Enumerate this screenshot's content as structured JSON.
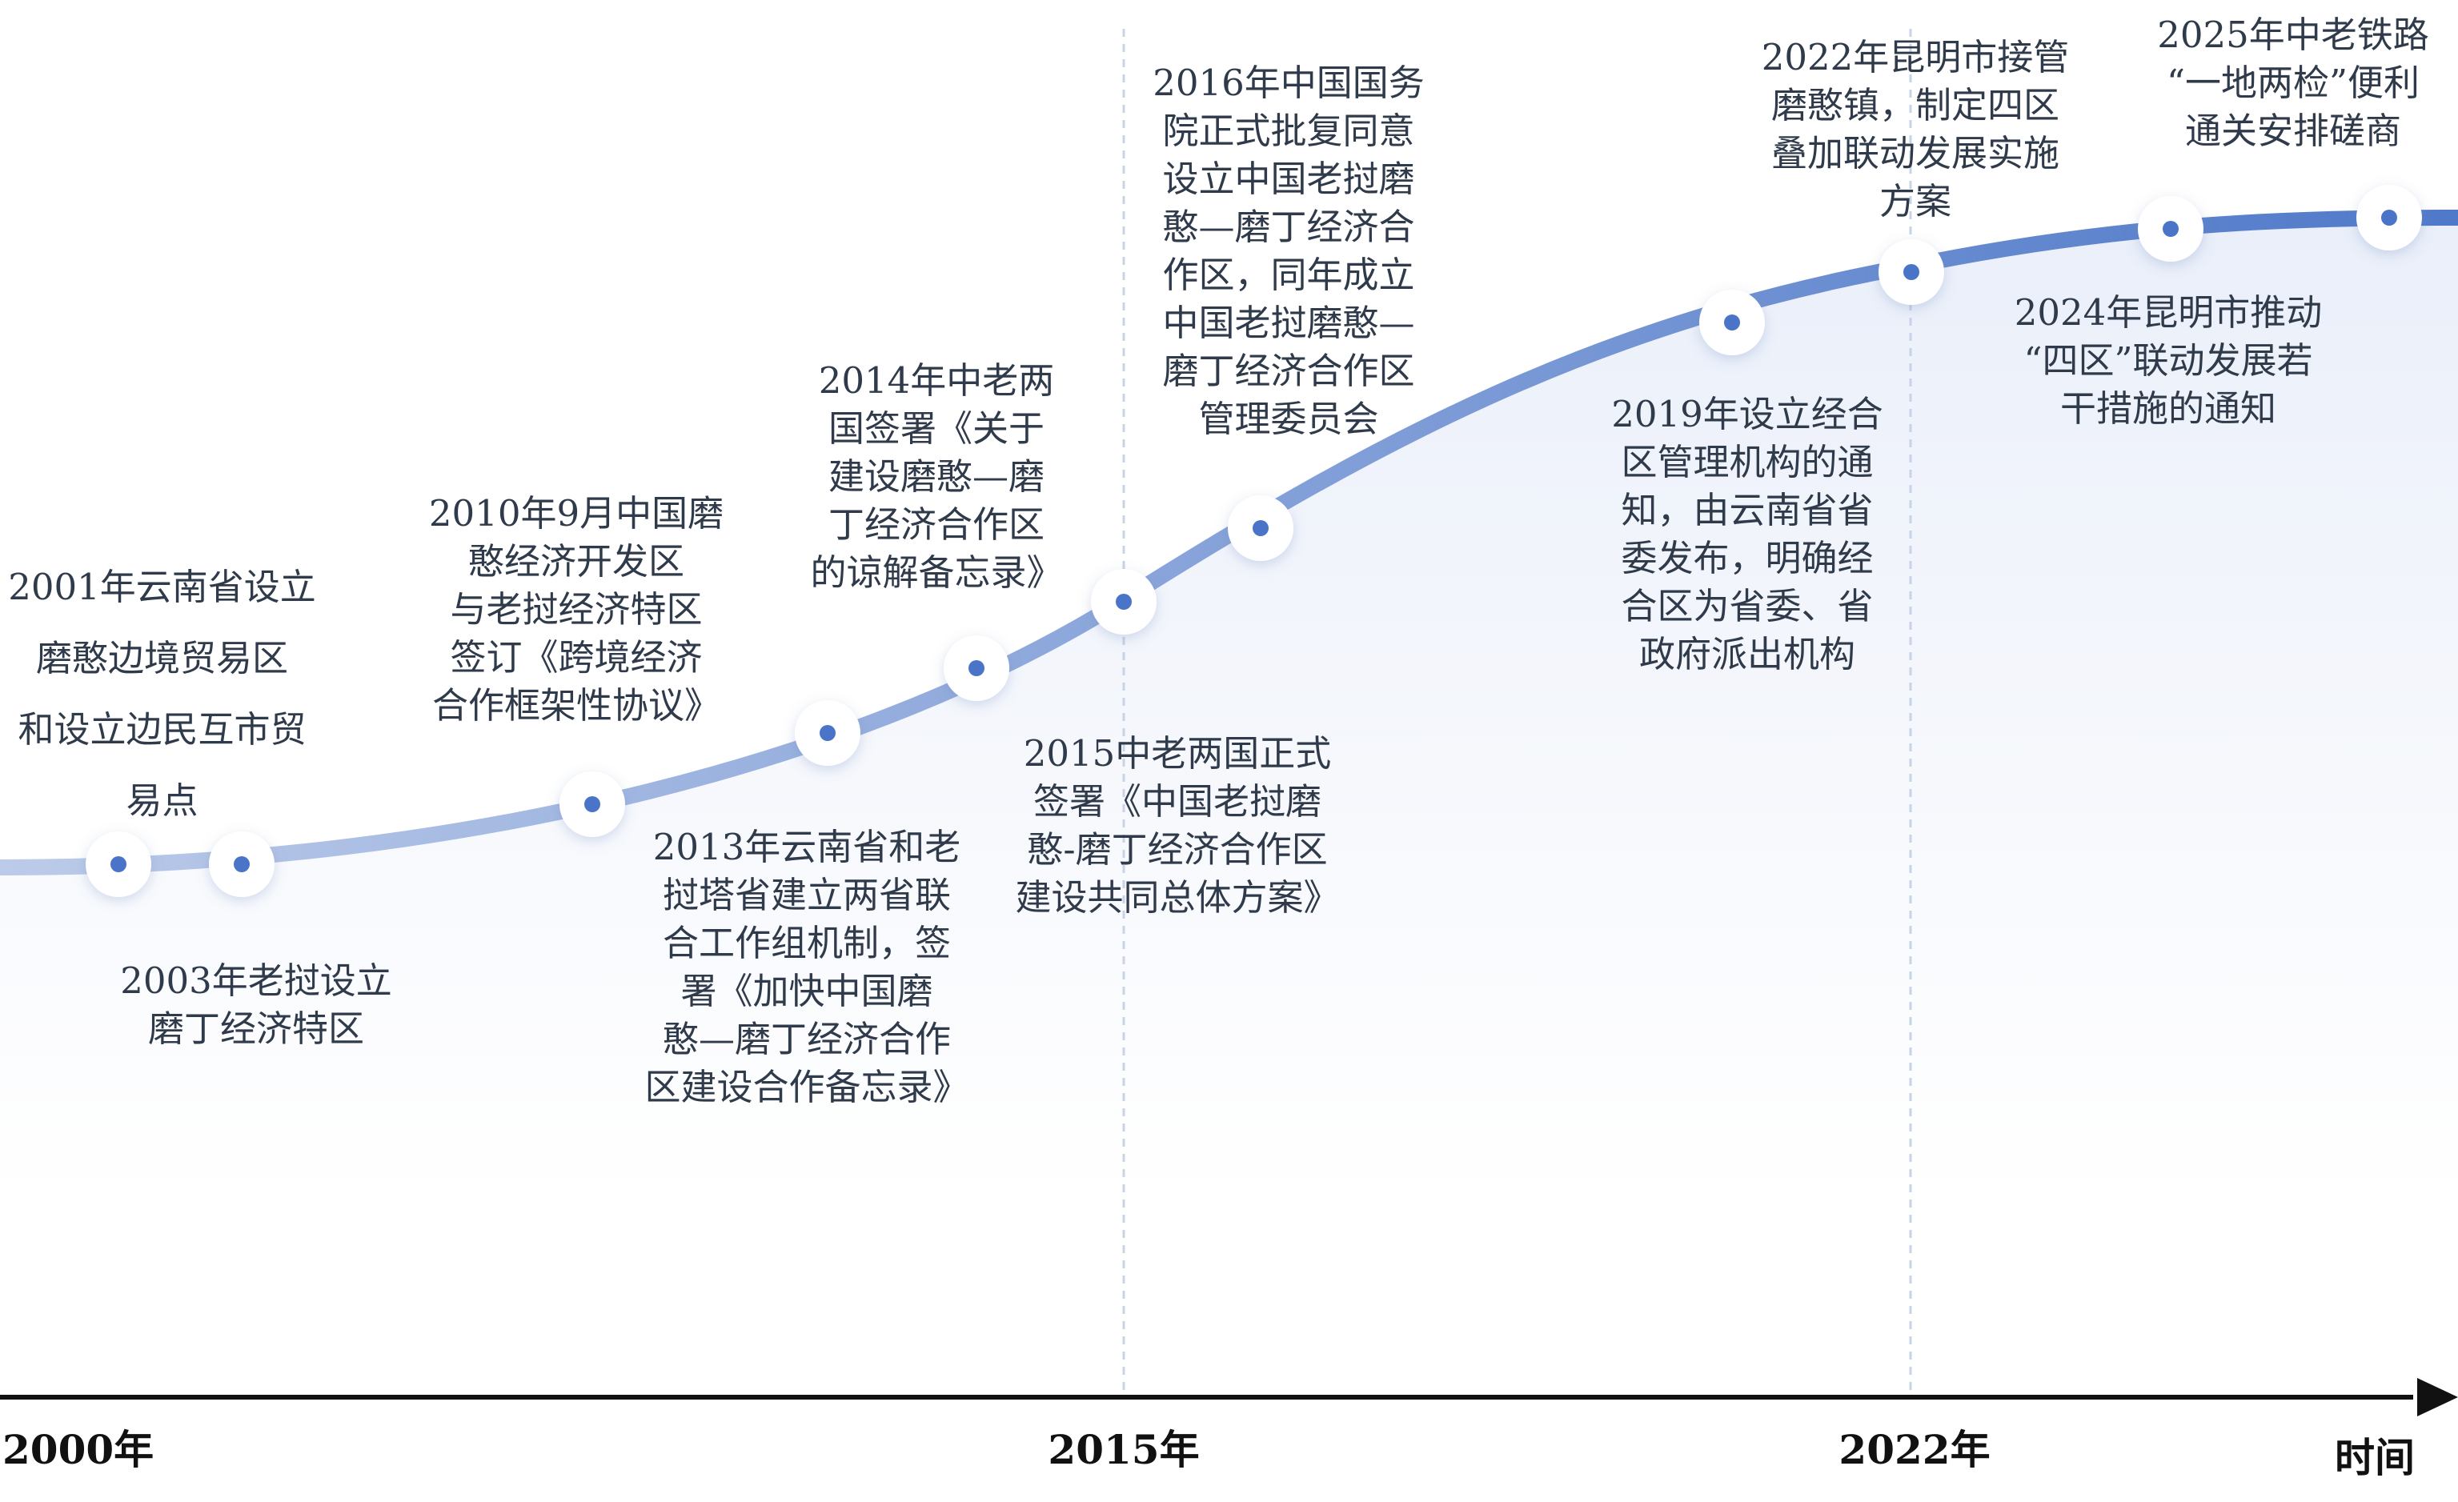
{
  "colors": {
    "curve_start": "#bccbe9",
    "curve_end": "#4f79c9",
    "marker_dot": "#4a74c7",
    "area_fill": "#e9eef9",
    "divider": "#c8d3e8",
    "axis": "#111111"
  },
  "axis": {
    "start_label": "2000年",
    "mid_label": "2015年",
    "late_label": "2022年",
    "end_label": "时间"
  },
  "events": [
    {
      "id": "e2001",
      "text": "2001年云南省设立\n磨憨边境贸易区\n和设立边民互市贸\n易点"
    },
    {
      "id": "e2003",
      "text": "2003年老挝设立\n磨丁经济特区"
    },
    {
      "id": "e2010",
      "text": "2010年9月中国磨\n憨经济开发区\n与老挝经济特区\n签订《跨境经济\n合作框架性协议》"
    },
    {
      "id": "e2013",
      "text": "2013年云南省和老\n挝塔省建立两省联\n合工作组机制，签\n署《加快中国磨\n憨—磨丁经济合作\n区建设合作备忘录》"
    },
    {
      "id": "e2014",
      "text": "2014年中老两\n国签署《关于\n建设磨憨—磨\n丁经济合作区\n的谅解备忘录》"
    },
    {
      "id": "e2015",
      "text": "2015中老两国正式\n签署《中国老挝磨\n憨-磨丁经济合作区\n建设共同总体方案》"
    },
    {
      "id": "e2016",
      "text": "2016年中国国务\n院正式批复同意\n设立中国老挝磨\n憨—磨丁经济合\n作区，同年成立\n中国老挝磨憨—\n磨丁经济合作区\n管理委员会"
    },
    {
      "id": "e2019",
      "text": "2019年设立经合\n区管理机构的通\n知，由云南省省\n委发布，明确经\n合区为省委、省\n政府派出机构"
    },
    {
      "id": "e2022",
      "text": "2022年昆明市接管\n磨憨镇，制定四区\n叠加联动发展实施\n方案"
    },
    {
      "id": "e2024",
      "text": "2024年昆明市推动\n“四区”联动发展若\n干措施的通知"
    },
    {
      "id": "e2025",
      "text": "2025年中老铁路\n“一地两检”便利\n通关安排磋商"
    }
  ]
}
